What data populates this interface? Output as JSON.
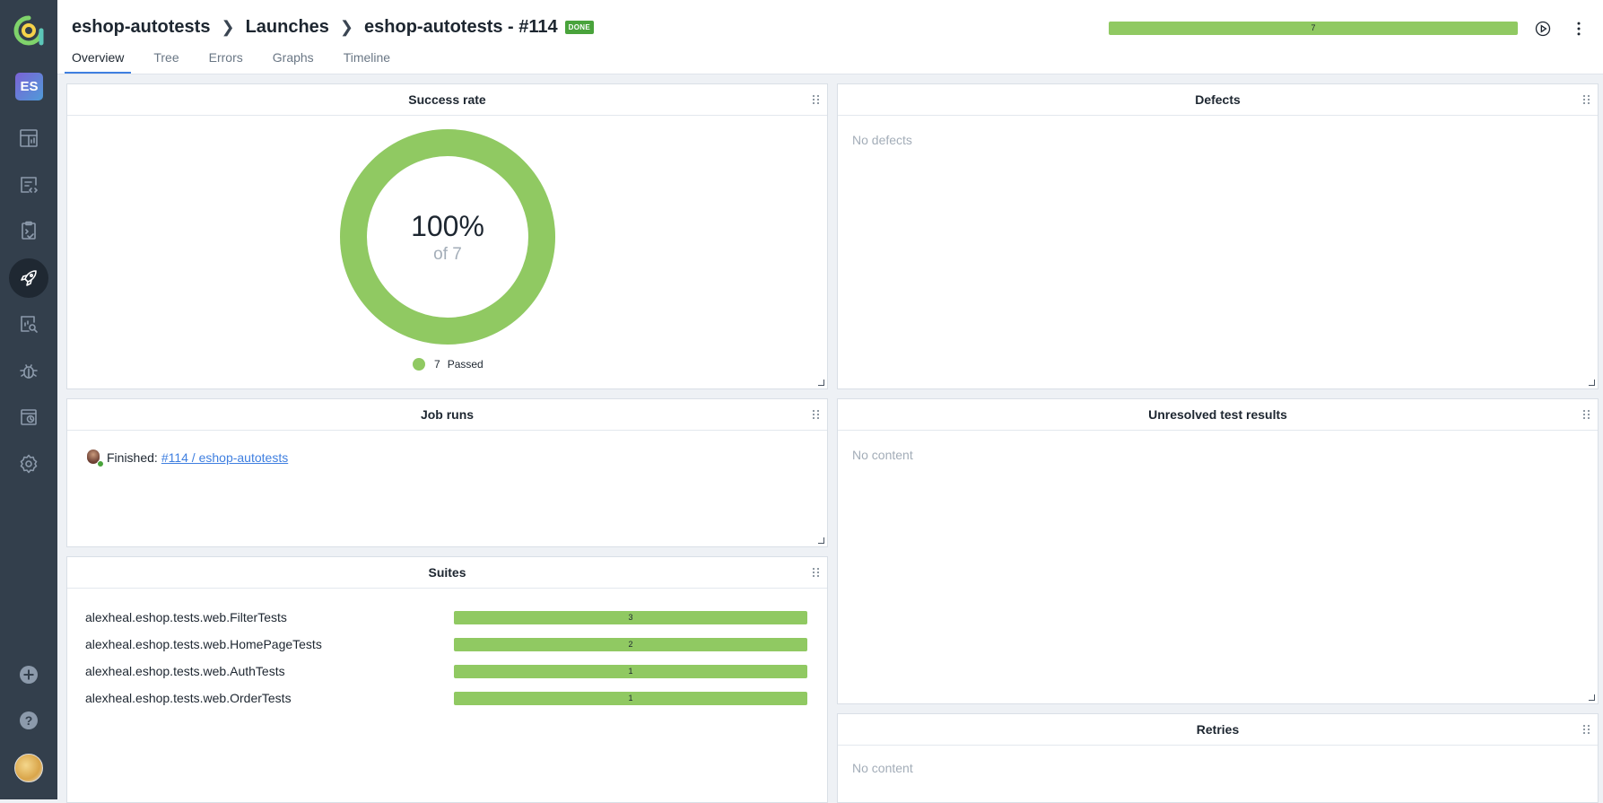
{
  "breadcrumb": {
    "project": "eshop-autotests",
    "section": "Launches",
    "launch": "eshop-autotests - #114",
    "status": "DONE"
  },
  "header": {
    "launch_count": "7"
  },
  "tabs": [
    {
      "label": "Overview",
      "active": true
    },
    {
      "label": "Tree"
    },
    {
      "label": "Errors"
    },
    {
      "label": "Graphs"
    },
    {
      "label": "Timeline"
    }
  ],
  "sidebar": {
    "project_initials": "ES",
    "items": [
      "dashboards-icon",
      "test-cases-icon",
      "test-plans-icon",
      "launches-icon",
      "analytics-icon",
      "defects-icon",
      "jobs-icon",
      "settings-icon"
    ],
    "bottom": [
      "add-icon",
      "help-icon",
      "user-avatar"
    ]
  },
  "widgets": {
    "success_rate": {
      "title": "Success rate",
      "percent_label": "100%",
      "of_label": "of 7",
      "passed_count": "7",
      "passed_label": "Passed",
      "passed_fraction": 1.0,
      "color": "#90c962"
    },
    "defects": {
      "title": "Defects",
      "empty": "No defects"
    },
    "job_runs": {
      "title": "Job runs",
      "status": "Finished:",
      "link": "#114 / eshop-autotests"
    },
    "unresolved": {
      "title": "Unresolved test results",
      "empty": "No content"
    },
    "suites": {
      "title": "Suites",
      "rows": [
        {
          "name": "alexheal.eshop.tests.web.FilterTests",
          "count": "3"
        },
        {
          "name": "alexheal.eshop.tests.web.HomePageTests",
          "count": "2"
        },
        {
          "name": "alexheal.eshop.tests.web.AuthTests",
          "count": "1"
        },
        {
          "name": "alexheal.eshop.tests.web.OrderTests",
          "count": "1"
        }
      ]
    },
    "retries": {
      "title": "Retries",
      "empty": "No content"
    }
  },
  "colors": {
    "passed": "#90c962",
    "accent": "#3f7fe0",
    "sidebar": "#333f4c",
    "done": "#49a33b"
  }
}
